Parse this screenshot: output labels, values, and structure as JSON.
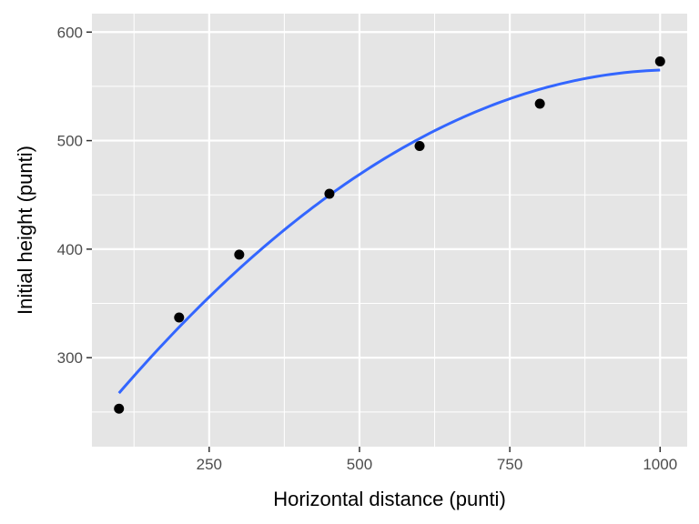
{
  "chart_data": {
    "type": "scatter",
    "title": "",
    "xlabel": "Horizontal distance (punti)",
    "ylabel": "Initial height (punti)",
    "xlim": [
      55,
      1045
    ],
    "ylim": [
      218,
      617
    ],
    "x_ticks": [
      250,
      500,
      750,
      1000
    ],
    "y_ticks": [
      300,
      400,
      500,
      600
    ],
    "x_tick_labels": [
      "250",
      "500",
      "750",
      "1000"
    ],
    "y_tick_labels": [
      "300",
      "400",
      "500",
      "600"
    ],
    "grid": true,
    "legend": "none",
    "series": [
      {
        "kind": "points",
        "x": [
          100,
          200,
          300,
          450,
          600,
          800,
          1000
        ],
        "y": [
          253,
          337,
          395,
          451,
          495,
          534,
          573
        ],
        "color": "#000000"
      },
      {
        "kind": "fit-line",
        "fit": "quadratic",
        "coefficients": [
          199.7,
          0.7113,
          -0.000346
        ],
        "x_range": [
          100,
          1000
        ],
        "color": "#3366ff"
      }
    ]
  },
  "colors": {
    "panel": "#e5e5e5",
    "grid_major": "#ffffff",
    "tick": "#333333"
  }
}
